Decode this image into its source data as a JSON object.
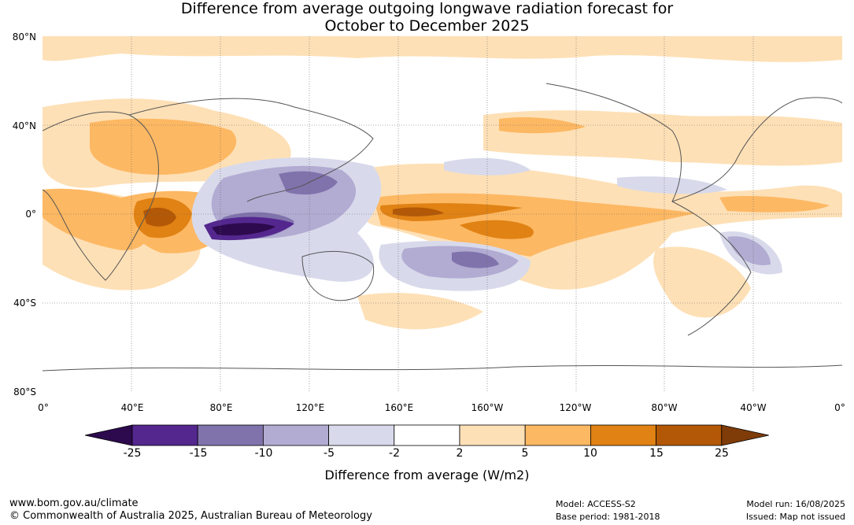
{
  "title_line1": "Difference from average outgoing longwave radiation forecast for",
  "title_line2": "October to December 2025",
  "lat_labels": [
    "80°N",
    "40°N",
    "0°",
    "40°S",
    "80°S"
  ],
  "lon_labels": [
    "0°",
    "40°E",
    "80°E",
    "120°E",
    "160°E",
    "160°W",
    "120°W",
    "80°W",
    "40°W",
    "0°"
  ],
  "colorbar": {
    "label": "Difference from average (W/m2)",
    "ticks": [
      "-25",
      "-15",
      "-10",
      "-5",
      "-2",
      "2",
      "5",
      "10",
      "15",
      "25"
    ],
    "colors": [
      "#2d0a4e",
      "#54278f",
      "#8073ac",
      "#b2abd2",
      "#d8daeb",
      "#ffffff",
      "#fee0b6",
      "#fdb863",
      "#e08214",
      "#b35806",
      "#7f3b08"
    ]
  },
  "footer": {
    "website": "www.bom.gov.au/climate",
    "copyright": "© Commonwealth of Australia 2025, Australian Bureau of Meteorology",
    "model": "Model: ACCESS-S2",
    "base_period": "Base period: 1981-2018",
    "model_run": "Model run: 16/08/2025",
    "issued": "Issued: Map not issued"
  }
}
